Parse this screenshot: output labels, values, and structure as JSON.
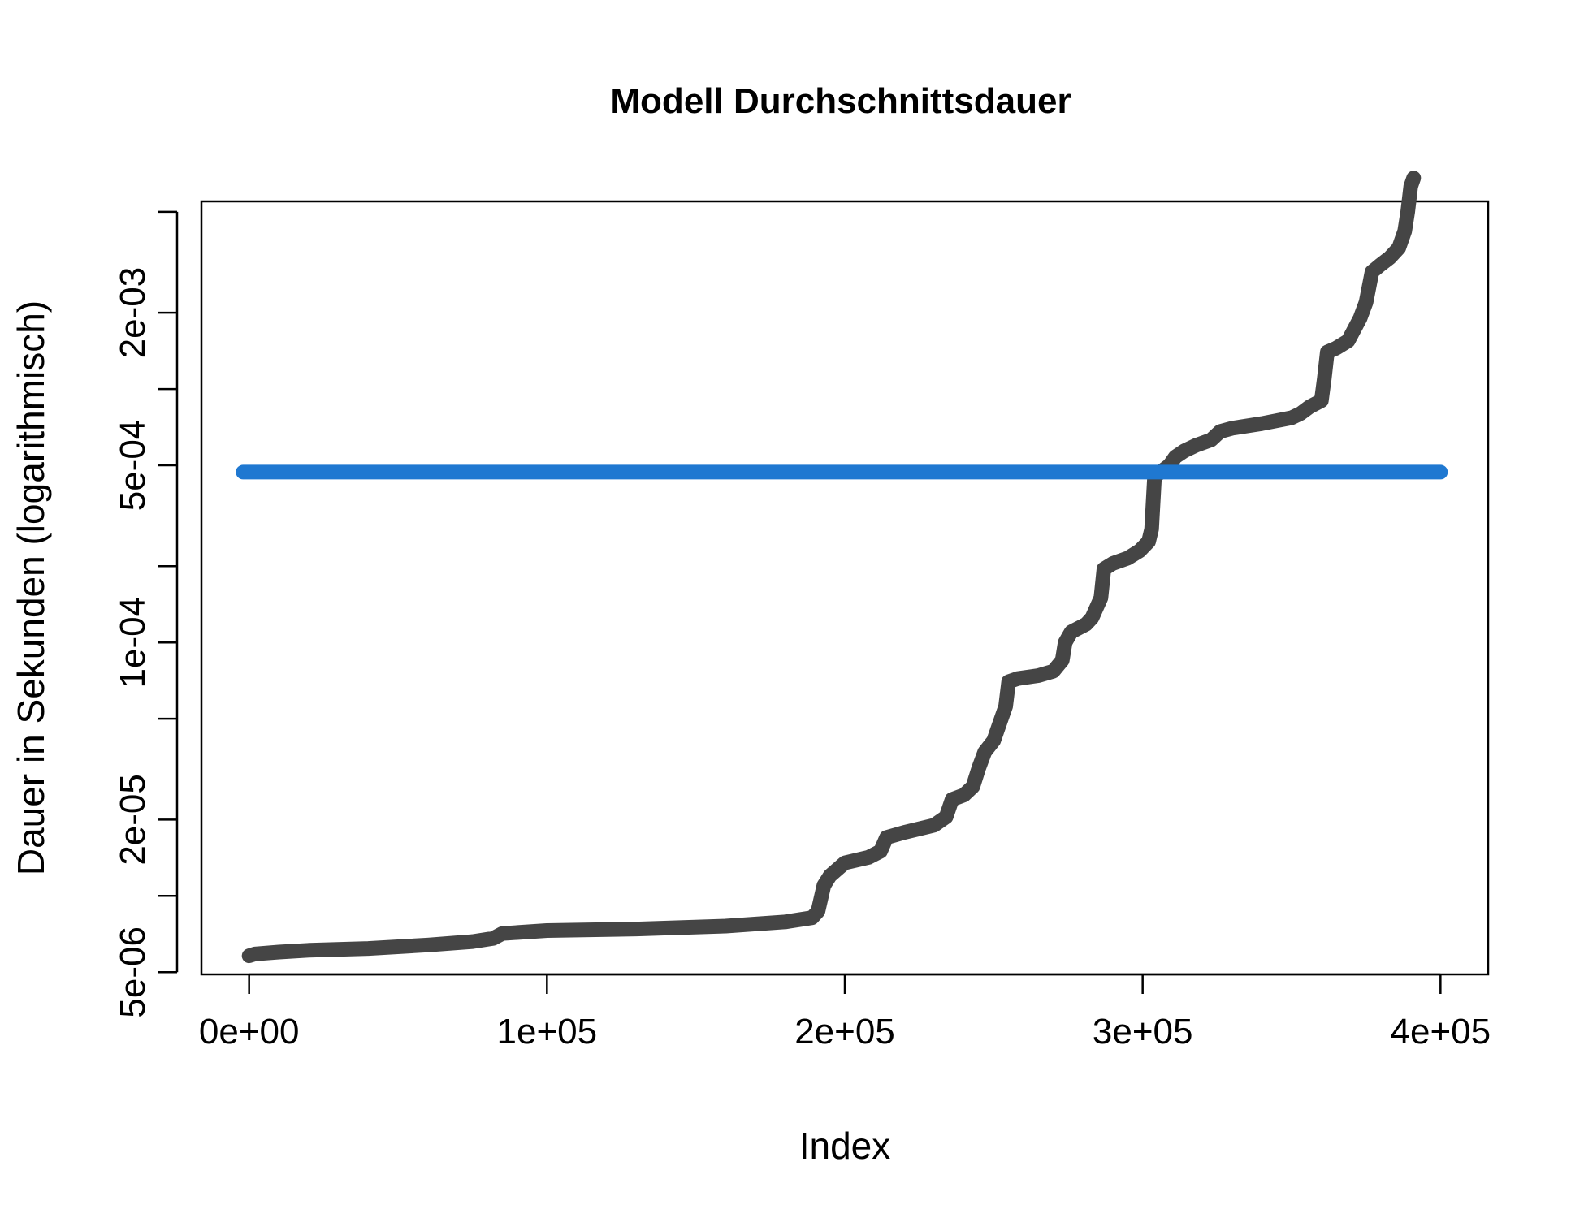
{
  "chart_data": {
    "type": "line",
    "title": "Modell  Durchschnittsdauer",
    "xlabel": "Index",
    "ylabel": "Dauer in Sekunden (logarithmisch)",
    "y_scale": "log",
    "xlim": [
      -16000,
      416000
    ],
    "ylim": [
      4.9e-06,
      0.0055
    ],
    "x_ticks": [
      {
        "value": 0,
        "label": "0e+00"
      },
      {
        "value": 100000,
        "label": "1e+05"
      },
      {
        "value": 200000,
        "label": "2e+05"
      },
      {
        "value": 300000,
        "label": "3e+05"
      },
      {
        "value": 400000,
        "label": "4e+05"
      }
    ],
    "y_ticks": [
      {
        "value": 5e-06,
        "label": "5e-06"
      },
      {
        "value": 1e-05,
        "label": ""
      },
      {
        "value": 2e-05,
        "label": "2e-05"
      },
      {
        "value": 5e-05,
        "label": ""
      },
      {
        "value": 0.0001,
        "label": "1e-04"
      },
      {
        "value": 0.0002,
        "label": ""
      },
      {
        "value": 0.0005,
        "label": "5e-04"
      },
      {
        "value": 0.001,
        "label": ""
      },
      {
        "value": 0.002,
        "label": "2e-03"
      },
      {
        "value": 0.005,
        "label": ""
      }
    ],
    "series": [
      {
        "color": "#454545",
        "points": [
          [
            0,
            5.8e-06
          ],
          [
            2000,
            5.9e-06
          ],
          [
            10000,
            6e-06
          ],
          [
            20000,
            6.1e-06
          ],
          [
            40000,
            6.2e-06
          ],
          [
            60000,
            6.4e-06
          ],
          [
            75000,
            6.6e-06
          ],
          [
            82000,
            6.8e-06
          ],
          [
            85000,
            7.1e-06
          ],
          [
            100000,
            7.3e-06
          ],
          [
            130000,
            7.4e-06
          ],
          [
            160000,
            7.6e-06
          ],
          [
            180000,
            7.9e-06
          ],
          [
            189000,
            8.2e-06
          ],
          [
            191000,
            8.7e-06
          ],
          [
            193000,
            1.1e-05
          ],
          [
            195000,
            1.2e-05
          ],
          [
            200000,
            1.35e-05
          ],
          [
            208000,
            1.42e-05
          ],
          [
            212000,
            1.5e-05
          ],
          [
            214000,
            1.7e-05
          ],
          [
            220000,
            1.78e-05
          ],
          [
            230000,
            1.9e-05
          ],
          [
            234000,
            2.05e-05
          ],
          [
            236000,
            2.4e-05
          ],
          [
            240000,
            2.5e-05
          ],
          [
            243000,
            2.7e-05
          ],
          [
            245000,
            3.2e-05
          ],
          [
            247000,
            3.7e-05
          ],
          [
            250000,
            4.1e-05
          ],
          [
            252000,
            4.8e-05
          ],
          [
            254000,
            5.6e-05
          ],
          [
            255000,
            7e-05
          ],
          [
            258000,
            7.2e-05
          ],
          [
            265000,
            7.4e-05
          ],
          [
            270000,
            7.7e-05
          ],
          [
            273000,
            8.5e-05
          ],
          [
            274000,
            0.0001
          ],
          [
            276000,
            0.00011
          ],
          [
            281000,
            0.000118
          ],
          [
            283000,
            0.000125
          ],
          [
            286000,
            0.00015
          ],
          [
            287000,
            0.000195
          ],
          [
            290000,
            0.000205
          ],
          [
            295000,
            0.000215
          ],
          [
            299000,
            0.00023
          ],
          [
            302000,
            0.00025
          ],
          [
            303000,
            0.00028
          ],
          [
            304000,
            0.00045
          ],
          [
            306000,
            0.00047
          ],
          [
            309000,
            0.0005
          ],
          [
            311000,
            0.00054
          ],
          [
            314000,
            0.00057
          ],
          [
            318000,
            0.0006
          ],
          [
            323000,
            0.00063
          ],
          [
            326000,
            0.00068
          ],
          [
            330000,
            0.0007
          ],
          [
            340000,
            0.00073
          ],
          [
            350000,
            0.00077
          ],
          [
            353000,
            0.0008
          ],
          [
            356000,
            0.00085
          ],
          [
            360000,
            0.0009
          ],
          [
            361000,
            0.0011
          ],
          [
            362000,
            0.0014
          ],
          [
            365000,
            0.00145
          ],
          [
            369000,
            0.00155
          ],
          [
            373000,
            0.0019
          ],
          [
            375000,
            0.0022
          ],
          [
            377000,
            0.0029
          ],
          [
            380000,
            0.0031
          ],
          [
            383000,
            0.0033
          ],
          [
            386000,
            0.0036
          ],
          [
            388000,
            0.0042
          ],
          [
            389000,
            0.005
          ],
          [
            390000,
            0.0063
          ],
          [
            391000,
            0.0068
          ]
        ]
      },
      {
        "color": "#1f78d1",
        "points": [
          [
            -2000,
            0.00047
          ],
          [
            400000,
            0.00047
          ]
        ]
      }
    ]
  }
}
